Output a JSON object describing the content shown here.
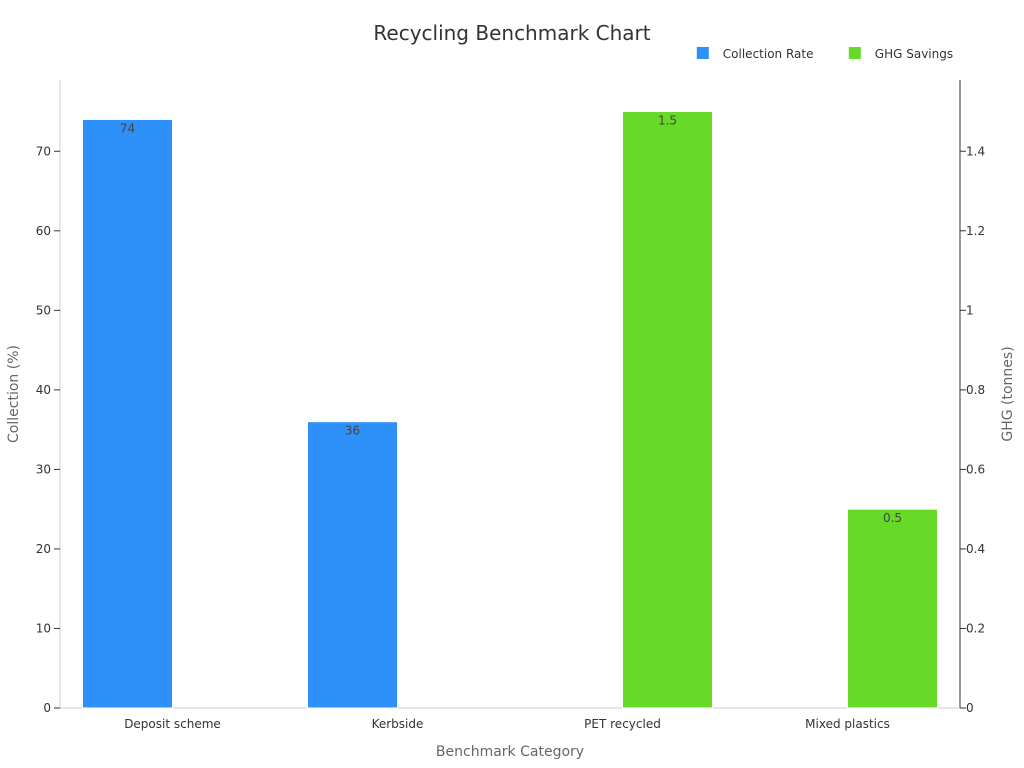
{
  "chart_data": {
    "type": "bar",
    "title": "Recycling Benchmark Chart",
    "xlabel": "Benchmark Category",
    "ylabel_left": "Collection (%)",
    "ylabel_right": "GHG (tonnes)",
    "categories": [
      "Deposit scheme",
      "Kerbside",
      "PET recycled",
      "Mixed plastics"
    ],
    "series": [
      {
        "name": "Collection Rate",
        "axis": "left",
        "color": "#2e91f9",
        "values": [
          74,
          36,
          null,
          null
        ],
        "labels": [
          "74",
          "36",
          "",
          ""
        ]
      },
      {
        "name": "GHG Savings",
        "axis": "right",
        "color": "#67da27",
        "values": [
          null,
          null,
          1.5,
          0.5
        ],
        "labels": [
          "",
          "",
          "1.5",
          "0.5"
        ]
      }
    ],
    "ylim_left": [
      0,
      75
    ],
    "yticks_left": [
      0,
      10,
      20,
      30,
      40,
      50,
      60,
      70
    ],
    "ytick_labels_left": [
      "0",
      "10",
      "20",
      "30",
      "40",
      "50",
      "60",
      "70"
    ],
    "ylim_right": [
      0,
      1.5
    ],
    "yticks_right": [
      0,
      0.2,
      0.4,
      0.6,
      0.8,
      1.0,
      1.2,
      1.4
    ],
    "ytick_labels_right": [
      "0",
      "0.2",
      "0.4",
      "0.6",
      "0.8",
      "1",
      "1.2",
      "1.4"
    ],
    "legend_position": "top-right",
    "grid": false
  }
}
